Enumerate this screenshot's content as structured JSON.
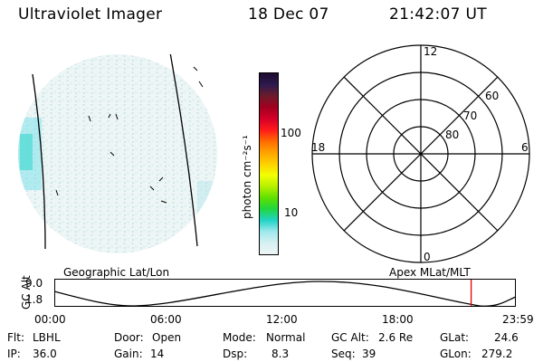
{
  "header": {
    "title": "Ultraviolet Imager",
    "date": "18 Dec 07",
    "time": "21:42:07 UT"
  },
  "colorbar": {
    "unit_label": "photon cm⁻²s⁻¹",
    "ticks": [
      "100",
      "10"
    ],
    "scale": "log",
    "colors": [
      "#1c0b2e",
      "#2d1a4f",
      "#6b1b2a",
      "#a3001f",
      "#d4002a",
      "#ff1a1a",
      "#ff6a00",
      "#ffa300",
      "#ffd000",
      "#f2ff00",
      "#b6f000",
      "#5fe000",
      "#1fd640",
      "#22d4c8",
      "#9fe8ec",
      "#d6f0f2",
      "#eef5f5"
    ]
  },
  "polar_plot": {
    "mlt_labels": {
      "top": "12",
      "left": "18",
      "right": "6",
      "bottom": "0"
    },
    "lat_labels": [
      "60",
      "70",
      "80"
    ]
  },
  "timeline": {
    "left_label": "Geographic Lat/Lon",
    "right_label": "Apex MLat/MLT",
    "axis_label": "GC Alt",
    "y_ticks": [
      "9.0",
      "1.8"
    ],
    "x_ticks": [
      "00:00",
      "06:00",
      "12:00",
      "18:00",
      "23:59"
    ],
    "marker_time": "21:42",
    "marker_color": "#e00000"
  },
  "status": {
    "flt_label": "Flt:",
    "flt_value": "LBHL",
    "ip_label": "IP:",
    "ip_value": "36.0",
    "door_label": "Door:",
    "door_value": "Open",
    "gain_label": "Gain:",
    "gain_value": "14",
    "mode_label": "Mode:",
    "mode_value": "Normal",
    "dsp_label": "Dsp:",
    "dsp_value": "8.3",
    "gcalt_label": "GC Alt:",
    "gcalt_value": "2.6 Re",
    "seq_label": "Seq:",
    "seq_value": "39",
    "glat_label": "GLat:",
    "glat_value": "24.6",
    "glon_label": "GLon:",
    "glon_value": "279.2"
  }
}
